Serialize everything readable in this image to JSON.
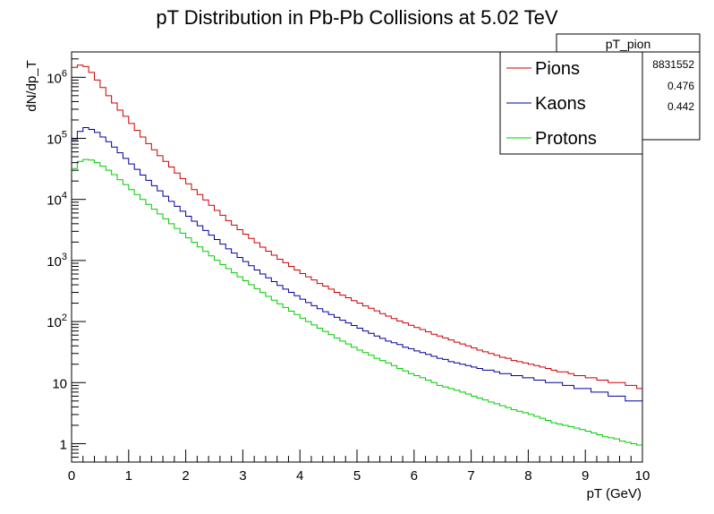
{
  "chart_data": {
    "type": "histogram",
    "title": "pT Distribution in Pb-Pb Collisions at 5.02 TeV",
    "xlabel": "pT (GeV)",
    "ylabel": "dN/dp_T",
    "xlim": [
      0,
      10
    ],
    "ylim": [
      0.5,
      2600000
    ],
    "y_scale": "log",
    "bin_width": 0.1,
    "x_ticks": [
      "0",
      "1",
      "2",
      "3",
      "4",
      "5",
      "6",
      "7",
      "8",
      "9",
      "10"
    ],
    "y_ticks": [
      {
        "value": 1,
        "base": "1",
        "exp": ""
      },
      {
        "value": 10,
        "base": "10",
        "exp": ""
      },
      {
        "value": 100,
        "base": "10",
        "exp": "2"
      },
      {
        "value": 1000,
        "base": "10",
        "exp": "3"
      },
      {
        "value": 10000,
        "base": "10",
        "exp": "4"
      },
      {
        "value": 100000,
        "base": "10",
        "exp": "5"
      },
      {
        "value": 1000000,
        "base": "10",
        "exp": "6"
      }
    ],
    "series": [
      {
        "name": "Pions",
        "color": "#cc0000",
        "values": [
          1450000,
          1580000,
          1500000,
          1200000,
          900000,
          680000,
          500000,
          380000,
          290000,
          230000,
          175000,
          135000,
          105000,
          82000,
          65000,
          52000,
          42000,
          34000,
          27000,
          22000,
          18000,
          14500,
          12000,
          9800,
          8000,
          6600,
          5500,
          4500,
          3800,
          3200,
          2700,
          2300,
          1950,
          1650,
          1420,
          1220,
          1050,
          920,
          800,
          700,
          610,
          540,
          480,
          420,
          380,
          340,
          300,
          270,
          245,
          220,
          200,
          180,
          165,
          150,
          135,
          123,
          112,
          102,
          95,
          87,
          80,
          74,
          68,
          62,
          58,
          54,
          50,
          46,
          43,
          40,
          37,
          34,
          32,
          30,
          28,
          26,
          25,
          23,
          22,
          21,
          20,
          19,
          18,
          17,
          16,
          15,
          15,
          14,
          13,
          13,
          12,
          12,
          11,
          11,
          10,
          10,
          10,
          9,
          9,
          8
        ]
      },
      {
        "name": "Kaons",
        "color": "#000099",
        "values": [
          95000,
          130000,
          150000,
          140000,
          125000,
          105000,
          88000,
          72000,
          58000,
          47000,
          38000,
          31000,
          25000,
          20500,
          16800,
          13800,
          11300,
          9300,
          7700,
          6400,
          5300,
          4400,
          3700,
          3100,
          2600,
          2200,
          1850,
          1550,
          1320,
          1120,
          960,
          820,
          700,
          600,
          520,
          450,
          390,
          340,
          300,
          265,
          232,
          205,
          182,
          162,
          145,
          130,
          117,
          105,
          95,
          86,
          78,
          70,
          64,
          58,
          53,
          48,
          45,
          42,
          38,
          36,
          33,
          31,
          29,
          27,
          25,
          24,
          22,
          21,
          20,
          19,
          18,
          17,
          16,
          16,
          15,
          14,
          14,
          13,
          13,
          12,
          12,
          11,
          11,
          10,
          10,
          10,
          9,
          9,
          8,
          8,
          8,
          7,
          7,
          7,
          6,
          6,
          6,
          5,
          5,
          5
        ]
      },
      {
        "name": "Protons",
        "color": "#00cc00",
        "values": [
          32000,
          42000,
          45000,
          44000,
          40000,
          35000,
          30000,
          25500,
          21000,
          17500,
          14500,
          12000,
          10000,
          8300,
          6900,
          5800,
          4800,
          4000,
          3350,
          2800,
          2350,
          1980,
          1670,
          1410,
          1190,
          1010,
          860,
          735,
          630,
          540,
          465,
          400,
          345,
          298,
          258,
          224,
          195,
          170,
          148,
          130,
          114,
          100,
          88,
          78,
          69,
          61,
          54,
          48,
          43,
          38,
          34,
          31,
          28,
          25,
          23,
          21,
          19,
          17,
          15.5,
          14,
          13,
          12,
          11,
          10,
          9,
          8.5,
          8,
          7.5,
          7,
          6.5,
          6,
          5.6,
          5.2,
          4.8,
          4.5,
          4.2,
          3.9,
          3.6,
          3.4,
          3.2,
          3,
          2.8,
          2.6,
          2.4,
          2.2,
          2.1,
          2,
          1.9,
          1.8,
          1.7,
          1.6,
          1.5,
          1.4,
          1.3,
          1.25,
          1.2,
          1.1,
          1.05,
          1,
          0.95
        ]
      }
    ],
    "stats_box": {
      "title": "pT_pion",
      "entries_fragment": "8831552",
      "mean_fragment": "0.476",
      "stddev_fragment": "0.442"
    },
    "legend_position": "top-right",
    "grid": false
  }
}
